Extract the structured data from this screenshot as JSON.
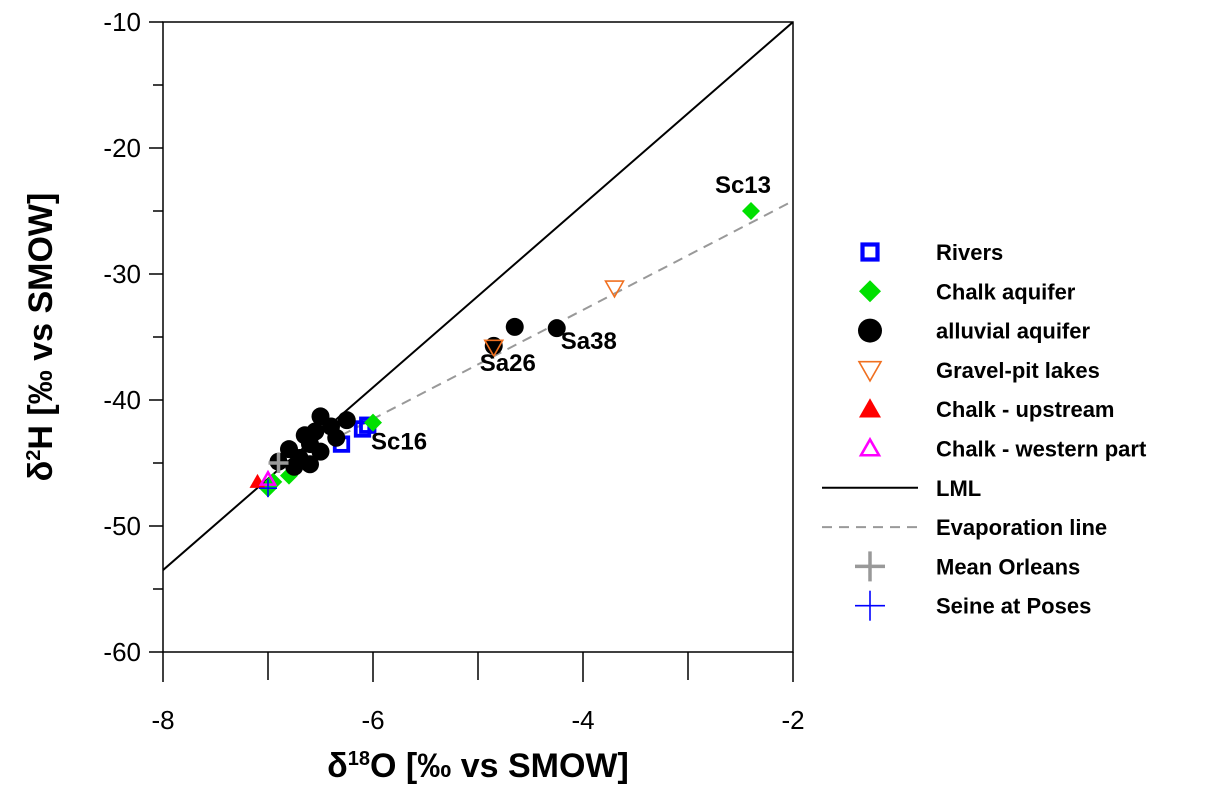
{
  "chart_data": {
    "type": "scatter",
    "xlabel": {
      "prefix": "δ",
      "sup": "18",
      "main": "O [‰ vs SMOW]"
    },
    "ylabel": {
      "prefix": "δ",
      "sup": "2",
      "main": "H [‰ vs SMOW]"
    },
    "xlim": [
      -8,
      -2
    ],
    "ylim": [
      -60,
      -10
    ],
    "xticks": [
      -8,
      -6,
      -4,
      -2
    ],
    "xtick_labels": [
      "-8",
      "-6",
      "-4",
      "-2"
    ],
    "yticks": [
      -60,
      -50,
      -40,
      -30,
      -20,
      -10
    ],
    "ytick_labels": [
      "-60",
      "-50",
      "-40",
      "-30",
      "-20",
      "-10"
    ],
    "grid": false,
    "legend_position": "right",
    "series": [
      {
        "name": "Rivers",
        "marker": "square-open",
        "color": "#0000ff",
        "points": [
          [
            -6.3,
            -43.5
          ],
          [
            -6.1,
            -42.3
          ],
          [
            -6.05,
            -42.0
          ]
        ]
      },
      {
        "name": "Chalk aquifer",
        "marker": "diamond",
        "color": "#00e000",
        "points": [
          [
            -2.4,
            -25.0
          ],
          [
            -6.0,
            -41.8
          ],
          [
            -6.8,
            -46.0
          ],
          [
            -6.95,
            -46.5
          ],
          [
            -7.0,
            -47.0
          ]
        ]
      },
      {
        "name": "alluvial aquifer",
        "marker": "circle",
        "color": "#000000",
        "points": [
          [
            -4.65,
            -34.2
          ],
          [
            -4.25,
            -34.3
          ],
          [
            -4.85,
            -35.7
          ],
          [
            -6.5,
            -41.3
          ],
          [
            -6.25,
            -41.6
          ],
          [
            -6.4,
            -42.1
          ],
          [
            -6.55,
            -42.5
          ],
          [
            -6.65,
            -42.8
          ],
          [
            -6.35,
            -43.0
          ],
          [
            -6.6,
            -43.5
          ],
          [
            -6.8,
            -43.9
          ],
          [
            -6.5,
            -44.1
          ],
          [
            -6.7,
            -44.6
          ],
          [
            -6.9,
            -44.9
          ],
          [
            -6.6,
            -45.1
          ],
          [
            -6.75,
            -45.3
          ]
        ]
      },
      {
        "name": "Gravel-pit lakes",
        "marker": "triangle-down-open",
        "color": "#f07020",
        "points": [
          [
            -3.7,
            -31.1
          ],
          [
            -4.85,
            -35.8
          ]
        ]
      },
      {
        "name": "Chalk - upstream",
        "marker": "triangle-up",
        "color": "#ff0000",
        "points": [
          [
            -7.1,
            -46.5
          ]
        ]
      },
      {
        "name": "Chalk - western part",
        "marker": "triangle-up-open",
        "color": "#ff00ff",
        "points": [
          [
            -7.0,
            -46.3
          ]
        ]
      },
      {
        "name": "LML",
        "marker": "line-solid",
        "color": "#000000",
        "line": [
          [
            -8,
            -53.5
          ],
          [
            -2,
            -10
          ]
        ]
      },
      {
        "name": "Evaporation line",
        "marker": "line-dashed",
        "color": "#999999",
        "line": [
          [
            -6.3,
            -42.8
          ],
          [
            -2,
            -24.2
          ]
        ]
      },
      {
        "name": "Mean Orleans",
        "marker": "plus-large",
        "color": "#999999",
        "points": [
          [
            -6.9,
            -45.0
          ]
        ]
      },
      {
        "name": "Seine at Poses",
        "marker": "plus",
        "color": "#0000ff",
        "points": [
          [
            -7.0,
            -47.0
          ]
        ]
      }
    ],
    "annotations": [
      {
        "text": "Sc13",
        "x": -2.4,
        "y": -25.0
      },
      {
        "text": "Sa38",
        "x": -4.25,
        "y": -34.3
      },
      {
        "text": "Sa26",
        "x": -4.85,
        "y": -35.8
      },
      {
        "text": "Sc16",
        "x": -6.0,
        "y": -41.8
      }
    ]
  }
}
